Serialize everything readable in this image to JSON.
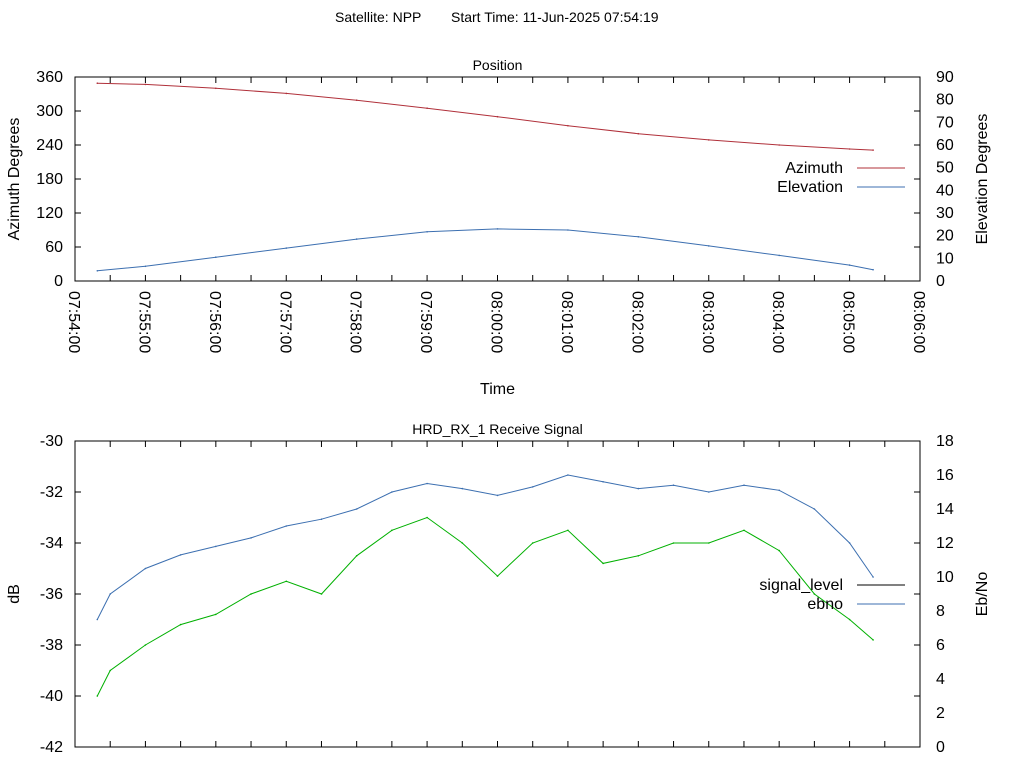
{
  "header": {
    "satellite": "Satellite: NPP",
    "start_time": "Start Time: 11-Jun-2025 07:54:19"
  },
  "chart_data": [
    {
      "type": "line",
      "title": "Position",
      "xlabel": "Time",
      "ylabel": "Azimuth Degrees",
      "y2label": "Elevation Degrees",
      "x_ticks": [
        "07:54:00",
        "07:55:00",
        "07:56:00",
        "07:57:00",
        "07:58:00",
        "07:59:00",
        "08:00:00",
        "08:01:00",
        "08:02:00",
        "08:03:00",
        "08:04:00",
        "08:05:00",
        "08:06:00"
      ],
      "xlim": [
        "07:54:00",
        "08:06:00"
      ],
      "ylim": [
        0,
        360
      ],
      "y_ticks": [
        0,
        60,
        120,
        180,
        240,
        300,
        360
      ],
      "y2lim": [
        0,
        90
      ],
      "y2_ticks": [
        0,
        10,
        20,
        30,
        40,
        50,
        60,
        70,
        80,
        90
      ],
      "legend_position": "right",
      "series": [
        {
          "name": "Azimuth",
          "axis": "y",
          "color": "#b0303a",
          "x": [
            "07:54:19",
            "07:55:00",
            "07:56:00",
            "07:57:00",
            "07:58:00",
            "07:59:00",
            "08:00:00",
            "08:01:00",
            "08:02:00",
            "08:03:00",
            "08:04:00",
            "08:05:00",
            "08:05:20"
          ],
          "values": [
            349,
            347,
            340,
            331,
            319,
            305,
            290,
            274,
            260,
            249,
            240,
            233,
            231
          ]
        },
        {
          "name": "Elevation",
          "axis": "y2",
          "color": "#3c6fb0",
          "x": [
            "07:54:19",
            "07:55:00",
            "07:56:00",
            "07:57:00",
            "07:58:00",
            "07:59:00",
            "08:00:00",
            "08:01:00",
            "08:02:00",
            "08:03:00",
            "08:04:00",
            "08:05:00",
            "08:05:20"
          ],
          "values": [
            4.5,
            6.5,
            10.5,
            14.5,
            18.5,
            21.7,
            23.0,
            22.5,
            19.5,
            15.5,
            11.3,
            7.0,
            5.0
          ]
        }
      ]
    },
    {
      "type": "line",
      "title": "HRD_RX_1 Receive Signal",
      "xlabel": "",
      "ylabel": "dB",
      "y2label": "Eb/No",
      "xlim": [
        "07:54:00",
        "08:06:00"
      ],
      "ylim": [
        -42,
        -30
      ],
      "y_ticks": [
        -42,
        -40,
        -38,
        -36,
        -34,
        -32,
        -30
      ],
      "y2lim": [
        0,
        18
      ],
      "y2_ticks": [
        0,
        2,
        4,
        6,
        8,
        10,
        12,
        14,
        16,
        18
      ],
      "legend_position": "right",
      "series": [
        {
          "name": "signal_level",
          "axis": "y",
          "color": "#00b000",
          "x": [
            "07:54:19",
            "07:54:30",
            "07:55:00",
            "07:55:30",
            "07:56:00",
            "07:56:30",
            "07:57:00",
            "07:57:30",
            "07:58:00",
            "07:58:30",
            "07:59:00",
            "07:59:30",
            "08:00:00",
            "08:00:30",
            "08:01:00",
            "08:01:30",
            "08:02:00",
            "08:02:30",
            "08:03:00",
            "08:03:30",
            "08:04:00",
            "08:04:30",
            "08:05:00",
            "08:05:20"
          ],
          "values": [
            -40,
            -39,
            -38,
            -37.2,
            -36.8,
            -36,
            -35.5,
            -36,
            -34.5,
            -33.5,
            -33,
            -34,
            -35.3,
            -34,
            -33.5,
            -34.8,
            -34.5,
            -34,
            -34,
            -33.5,
            -34.3,
            -36,
            -37,
            -37.8
          ]
        },
        {
          "name": "ebno",
          "axis": "y2",
          "color": "#3c6fb0",
          "x": [
            "07:54:19",
            "07:54:30",
            "07:55:00",
            "07:55:30",
            "07:56:00",
            "07:56:30",
            "07:57:00",
            "07:57:30",
            "07:58:00",
            "07:58:30",
            "07:59:00",
            "07:59:30",
            "08:00:00",
            "08:00:30",
            "08:01:00",
            "08:01:30",
            "08:02:00",
            "08:02:30",
            "08:03:00",
            "08:03:30",
            "08:04:00",
            "08:04:30",
            "08:05:00",
            "08:05:20"
          ],
          "values": [
            7.5,
            9,
            10.5,
            11.3,
            11.8,
            12.3,
            13,
            13.4,
            14,
            15,
            15.5,
            15.2,
            14.8,
            15.3,
            16,
            15.6,
            15.2,
            15.4,
            15,
            15.4,
            15.1,
            14,
            12,
            10
          ]
        }
      ]
    }
  ]
}
